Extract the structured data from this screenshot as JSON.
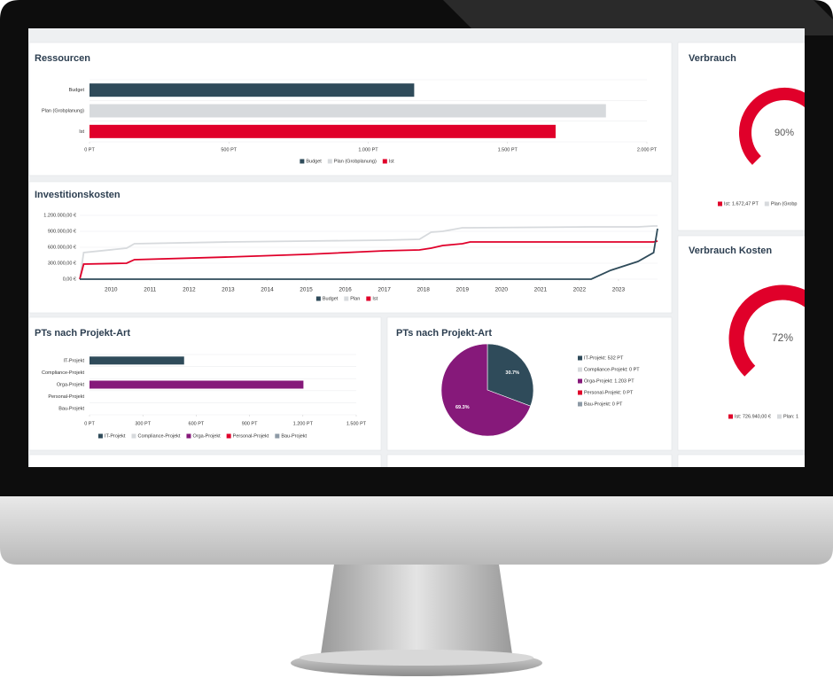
{
  "chart_data": [
    {
      "type": "bar",
      "title": "Ressourcen",
      "categories": [
        "Budget",
        "Plan (Grobplanung)",
        "Ist"
      ],
      "values": [
        1165,
        1853,
        1672.47
      ],
      "colors": [
        "#2f4b5a",
        "#d7dadd",
        "#e0002a"
      ],
      "xlim": [
        0,
        2000
      ],
      "xticks": [
        {
          "value": 0,
          "label": "0 PT"
        },
        {
          "value": 500,
          "label": "500 PT"
        },
        {
          "value": 1000,
          "label": "1.000 PT"
        },
        {
          "value": 1500,
          "label": "1.500 PT"
        },
        {
          "value": 2000,
          "label": "2.000 PT"
        }
      ],
      "grid": true,
      "legend": "bottom"
    },
    {
      "type": "gauge",
      "title": "Verbrauch",
      "value": 90,
      "value_label": "90%",
      "ylim": [
        0,
        100
      ],
      "color": "#e0002a",
      "legend": [
        {
          "name": "Ist: 1.672,47 PT",
          "color": "#e0002a"
        },
        {
          "name": "Plan (Grobp",
          "color": "#d7dadd"
        }
      ]
    },
    {
      "type": "line",
      "title": "Investitionskosten",
      "x": [
        2009.2,
        2009.3,
        2010.4,
        2010.6,
        2013,
        2015,
        2017,
        2017.9,
        2018.2,
        2018.5,
        2019,
        2019.2,
        2022.3,
        2022.8,
        2023.5,
        2023.9,
        2024.0
      ],
      "series": [
        {
          "name": "Budget",
          "color": "#2f4b5a",
          "values": [
            0,
            0,
            0,
            0,
            0,
            0,
            0,
            0,
            0,
            0,
            0,
            0,
            0,
            167000,
            333000,
            500000,
            950000
          ]
        },
        {
          "name": "Plan",
          "color": "#d7dadd",
          "values": [
            0,
            500000,
            583000,
            667000,
            700000,
            717000,
            733000,
            750000,
            883000,
            900000,
            967000,
            967000,
            983000,
            983000,
            983000,
            1000000,
            1000000
          ]
        },
        {
          "name": "Ist",
          "color": "#e0002a",
          "values": [
            0,
            283000,
            300000,
            367000,
            417000,
            467000,
            533000,
            550000,
            583000,
            633000,
            667000,
            700000,
            700000,
            700000,
            700000,
            700000,
            717000
          ]
        }
      ],
      "xlim": [
        2009.2,
        2024.0
      ],
      "xticks": [
        2010,
        2011,
        2012,
        2013,
        2014,
        2015,
        2016,
        2017,
        2018,
        2019,
        2020,
        2021,
        2022,
        2023
      ],
      "ylim": [
        0,
        1200000
      ],
      "yticks": [
        {
          "value": 0,
          "label": "0,00 €"
        },
        {
          "value": 300000,
          "label": "300.000,00 €"
        },
        {
          "value": 600000,
          "label": "600.000,00 €"
        },
        {
          "value": 900000,
          "label": "900.000,00 €"
        },
        {
          "value": 1200000,
          "label": "1.200.000,00 €"
        }
      ],
      "grid": true,
      "legend": "bottom"
    },
    {
      "type": "gauge",
      "title": "Verbrauch Kosten",
      "value": 72,
      "value_label": "72%",
      "ylim": [
        0,
        100
      ],
      "color": "#e0002a",
      "legend": [
        {
          "name": "Ist: 726.940,00 €",
          "color": "#e0002a"
        },
        {
          "name": "Plan: 1",
          "color": "#d7dadd"
        }
      ]
    },
    {
      "type": "bar",
      "title": "PTs nach Projekt-Art",
      "categories": [
        "IT-Projekt",
        "Compliance-Projekt",
        "Orga-Projekt",
        "Personal-Projekt",
        "Bau-Projekt"
      ],
      "values": [
        532,
        0,
        1203,
        0,
        0
      ],
      "colors": [
        "#2f4b5a",
        "#d7dadd",
        "#86197a",
        "#e0002a",
        "#8d9aa6"
      ],
      "xlim": [
        0,
        1500
      ],
      "xticks": [
        {
          "value": 0,
          "label": "0 PT"
        },
        {
          "value": 300,
          "label": "300 PT"
        },
        {
          "value": 600,
          "label": "600 PT"
        },
        {
          "value": 900,
          "label": "900 PT"
        },
        {
          "value": 1200,
          "label": "1.200 PT"
        },
        {
          "value": 1500,
          "label": "1.500 PT"
        }
      ],
      "grid": true,
      "legend": "bottom"
    },
    {
      "type": "pie",
      "title": "PTs nach Projekt-Art",
      "categories": [
        "IT-Projekt: 532 PT",
        "Compliance-Projekt: 0 PT",
        "Orga-Projekt: 1.203 PT",
        "Personal-Projekt: 0 PT",
        "Bau-Projekt: 0 PT"
      ],
      "values": [
        30.7,
        0,
        69.3,
        0,
        0
      ],
      "value_labels": [
        "30.7%",
        null,
        "69.3%",
        null,
        null
      ],
      "colors": [
        "#2f4b5a",
        "#d7dadd",
        "#86197a",
        "#e0002a",
        "#8d9aa6"
      ],
      "legend": "right"
    }
  ]
}
